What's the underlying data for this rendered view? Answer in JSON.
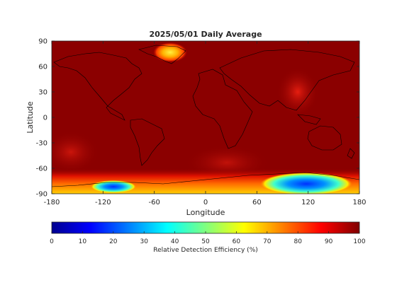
{
  "title": "2025/05/01 Daily Average",
  "map": {
    "xlabel": "Longitude",
    "ylabel": "Latitude",
    "xlim": [
      -180,
      180
    ],
    "ylim": [
      -90,
      90
    ],
    "xticks": [
      "-180",
      "-120",
      "-60",
      "0",
      "60",
      "120",
      "180"
    ],
    "yticks": [
      "90",
      "60",
      "30",
      "0",
      "-30",
      "-60",
      "-90"
    ],
    "base_color": "#800000",
    "features": [
      {
        "name": "greenland-high",
        "lon": -37,
        "lat": 73,
        "value_range": [
          60,
          75
        ]
      },
      {
        "name": "antarctica-east-low",
        "lon": 110,
        "lat": -78,
        "value_range": [
          20,
          40
        ]
      },
      {
        "name": "antarctica-west-low",
        "lon": -110,
        "lat": -80,
        "value_range": [
          30,
          50
        ]
      }
    ]
  },
  "colorbar": {
    "label": "Relative Detection Efficiency (%)",
    "ticks": [
      "0",
      "10",
      "20",
      "30",
      "40",
      "50",
      "60",
      "70",
      "80",
      "90",
      "100"
    ],
    "colormap": "jet",
    "min": 0,
    "max": 100
  }
}
